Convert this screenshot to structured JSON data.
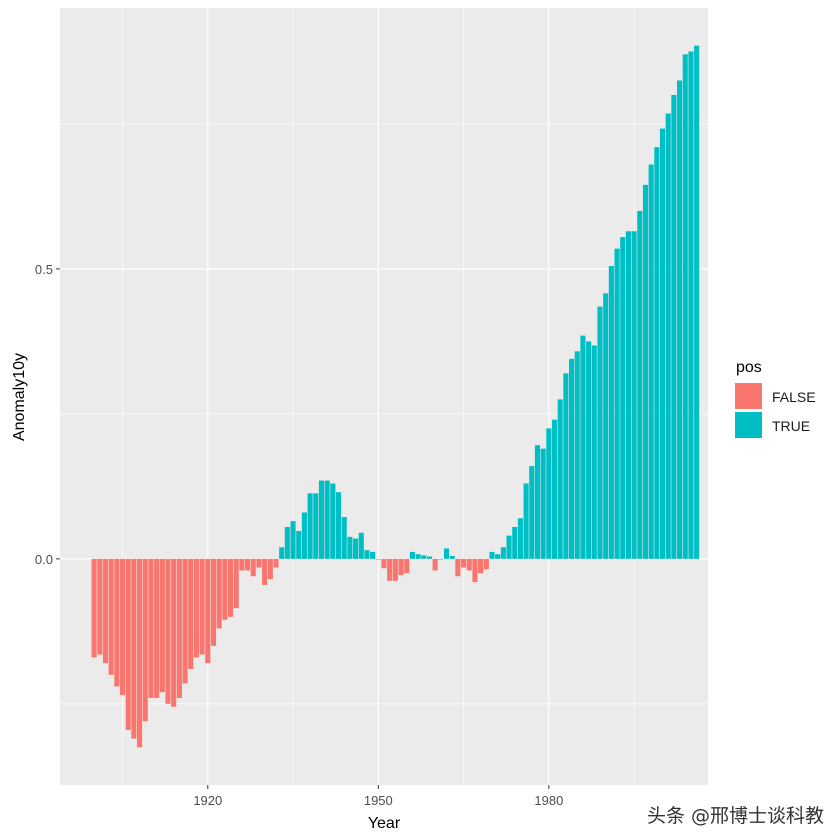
{
  "chart_data": {
    "type": "bar",
    "xlabel": "Year",
    "ylabel": "Anomaly10y",
    "xlim": [
      1894,
      2008
    ],
    "ylim": [
      -0.39,
      0.95
    ],
    "x_ticks": [
      1920,
      1950,
      1980
    ],
    "x_minor_ticks": [
      1905,
      1935,
      1965,
      1995
    ],
    "y_ticks": [
      0.0,
      0.5
    ],
    "y_tick_labels": [
      "0.0",
      "0.5"
    ],
    "y_minor_ticks": [
      -0.25,
      0.25,
      0.75
    ],
    "grid": true,
    "legend": {
      "title": "pos",
      "placement": "right",
      "entries": [
        {
          "label": "FALSE",
          "color": "#F8766D"
        },
        {
          "label": "TRUE",
          "color": "#00BFC4"
        }
      ]
    },
    "colors": {
      "negative": "#F8766D",
      "positive": "#00BFC4",
      "panel": "#EBEBEB",
      "grid": "#FFFFFF"
    },
    "x": [
      1900,
      1901,
      1902,
      1903,
      1904,
      1905,
      1906,
      1907,
      1908,
      1909,
      1910,
      1911,
      1912,
      1913,
      1914,
      1915,
      1916,
      1917,
      1918,
      1919,
      1920,
      1921,
      1922,
      1923,
      1924,
      1925,
      1926,
      1927,
      1928,
      1929,
      1930,
      1931,
      1932,
      1933,
      1934,
      1935,
      1936,
      1937,
      1938,
      1939,
      1940,
      1941,
      1942,
      1943,
      1944,
      1945,
      1946,
      1947,
      1948,
      1949,
      1950,
      1951,
      1952,
      1953,
      1954,
      1955,
      1956,
      1957,
      1958,
      1959,
      1960,
      1961,
      1962,
      1963,
      1964,
      1965,
      1966,
      1967,
      1968,
      1969,
      1970,
      1971,
      1972,
      1973,
      1974,
      1975,
      1976,
      1977,
      1978,
      1979,
      1980,
      1981,
      1982,
      1983,
      1984,
      1985,
      1986,
      1987,
      1988,
      1989,
      1990,
      1991,
      1992,
      1993,
      1994,
      1995,
      1996,
      1997,
      1998,
      1999,
      2000,
      2001,
      2002,
      2003,
      2004,
      2005,
      2006
    ],
    "values": [
      -0.17,
      -0.165,
      -0.18,
      -0.2,
      -0.22,
      -0.235,
      -0.295,
      -0.31,
      -0.325,
      -0.28,
      -0.24,
      -0.24,
      -0.23,
      -0.25,
      -0.255,
      -0.24,
      -0.215,
      -0.19,
      -0.17,
      -0.165,
      -0.18,
      -0.15,
      -0.12,
      -0.105,
      -0.1,
      -0.085,
      -0.02,
      -0.02,
      -0.03,
      -0.015,
      -0.045,
      -0.035,
      -0.015,
      0.02,
      0.055,
      0.065,
      0.048,
      0.08,
      0.113,
      0.113,
      0.135,
      0.135,
      0.13,
      0.115,
      0.072,
      0.038,
      0.035,
      0.045,
      0.015,
      0.012,
      0.0,
      -0.016,
      -0.038,
      -0.038,
      -0.028,
      -0.025,
      0.012,
      0.008,
      0.006,
      0.004,
      -0.02,
      0.0,
      0.018,
      0.005,
      -0.03,
      -0.015,
      -0.02,
      -0.04,
      -0.025,
      -0.018,
      0.012,
      0.008,
      0.02,
      0.04,
      0.055,
      0.07,
      0.13,
      0.16,
      0.196,
      0.19,
      0.225,
      0.24,
      0.275,
      0.32,
      0.345,
      0.358,
      0.385,
      0.375,
      0.368,
      0.435,
      0.458,
      0.505,
      0.535,
      0.555,
      0.565,
      0.565,
      0.6,
      0.645,
      0.68,
      0.71,
      0.742,
      0.768,
      0.8,
      0.825,
      0.87,
      0.875,
      0.885
    ]
  },
  "watermark": "头条 @邢博士谈科教"
}
